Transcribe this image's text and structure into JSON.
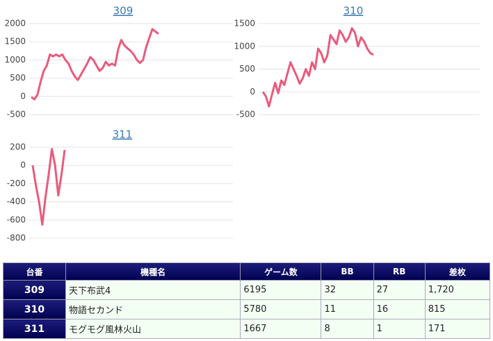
{
  "chart_data": [
    {
      "type": "line",
      "title": "309",
      "color": "#ea5a7c",
      "grid": true,
      "ylim": [
        -500,
        2000
      ],
      "yticks": [
        -500,
        0,
        500,
        1000,
        1500,
        2000
      ],
      "values": [
        -20,
        -80,
        50,
        400,
        700,
        850,
        1150,
        1100,
        1150,
        1100,
        1150,
        1000,
        900,
        700,
        550,
        450,
        600,
        750,
        900,
        1080,
        1000,
        850,
        700,
        780,
        950,
        850,
        900,
        850,
        1300,
        1550,
        1400,
        1320,
        1250,
        1150,
        1000,
        920,
        1000,
        1350,
        1600,
        1850,
        1780,
        1720
      ]
    },
    {
      "type": "line",
      "title": "310",
      "color": "#ea5a7c",
      "grid": true,
      "ylim": [
        -500,
        1500
      ],
      "yticks": [
        -500,
        0,
        500,
        1000,
        1500
      ],
      "values": [
        0,
        -100,
        -320,
        -50,
        200,
        -30,
        250,
        150,
        400,
        650,
        500,
        350,
        180,
        300,
        500,
        350,
        650,
        500,
        950,
        850,
        650,
        800,
        1250,
        1150,
        1050,
        1350,
        1250,
        1100,
        1200,
        1400,
        1300,
        1000,
        1200,
        1100,
        950,
        850,
        815
      ]
    },
    {
      "type": "line",
      "title": "311",
      "color": "#ea5a7c",
      "grid": true,
      "ylim": [
        -800,
        200
      ],
      "yticks": [
        -800,
        -600,
        -400,
        -200,
        0,
        200
      ],
      "values": [
        0,
        -220,
        -400,
        -650,
        -350,
        -100,
        180,
        0,
        -330,
        -100,
        171
      ]
    }
  ],
  "table": {
    "header": [
      "台番",
      "機種名",
      "ゲーム数",
      "BB",
      "RB",
      "差枚"
    ],
    "rows": [
      [
        "309",
        "天下布武4",
        "6195",
        "32",
        "27",
        "1,720"
      ],
      [
        "310",
        "物語セカンド",
        "5780",
        "11",
        "16",
        "815"
      ],
      [
        "311",
        "モグモグ風林火山",
        "1667",
        "8",
        "1",
        "171"
      ]
    ]
  }
}
